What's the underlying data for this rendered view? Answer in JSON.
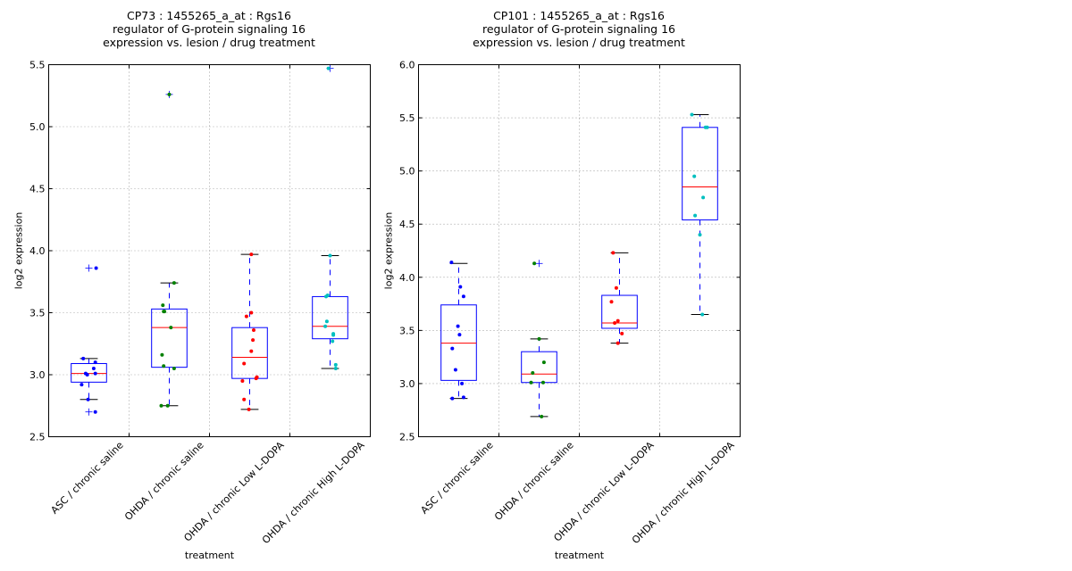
{
  "chart_data": [
    {
      "type": "boxplot",
      "title": [
        "CP73 : 1455265_a_at : Rgs16",
        "regulator of G-protein signaling 16",
        "expression vs. lesion / drug treatment"
      ],
      "xlabel": "treatment",
      "ylabel": "log2 expression",
      "ylim": [
        2.5,
        5.5
      ],
      "yticks": [
        "2.5",
        "3.0",
        "3.5",
        "4.0",
        "4.5",
        "5.0",
        "5.5"
      ],
      "grid": true,
      "categories": [
        "ASC / chronic saline",
        "OHDA / chronic saline",
        "OHDA / chronic Low L-DOPA",
        "OHDA / chronic High L-DOPA"
      ],
      "point_colors": [
        "#0000ff",
        "#008000",
        "#ff0000",
        "#00bfbf"
      ],
      "boxes": [
        {
          "whislo": 2.8,
          "q1": 2.94,
          "med": 3.01,
          "q3": 3.09,
          "whishi": 3.13,
          "fliers": [
            3.86,
            2.7
          ]
        },
        {
          "whislo": 2.75,
          "q1": 3.06,
          "med": 3.38,
          "q3": 3.53,
          "whishi": 3.74,
          "fliers": [
            5.26
          ]
        },
        {
          "whislo": 2.72,
          "q1": 2.97,
          "med": 3.14,
          "q3": 3.38,
          "whishi": 3.97,
          "fliers": []
        },
        {
          "whislo": 3.05,
          "q1": 3.29,
          "med": 3.39,
          "q3": 3.63,
          "whishi": 3.96,
          "fliers": [
            5.47
          ]
        }
      ],
      "points": [
        [
          [
            -0.07,
            3.13
          ],
          [
            0.08,
            3.1
          ],
          [
            0.06,
            3.05
          ],
          [
            -0.04,
            3.01
          ],
          [
            -0.02,
            3.0
          ],
          [
            0.08,
            3.01
          ],
          [
            -0.09,
            2.92
          ],
          [
            -0.01,
            2.8
          ],
          [
            0.08,
            2.7
          ],
          [
            0.09,
            3.86
          ]
        ],
        [
          [
            0.06,
            3.74
          ],
          [
            -0.08,
            3.56
          ],
          [
            -0.07,
            3.51
          ],
          [
            -0.06,
            3.51
          ],
          [
            0.02,
            3.38
          ],
          [
            -0.09,
            3.16
          ],
          [
            -0.07,
            3.07
          ],
          [
            0.06,
            3.05
          ],
          [
            -0.1,
            2.75
          ],
          [
            -0.02,
            2.75
          ],
          [
            0.0,
            5.26
          ]
        ],
        [
          [
            0.02,
            3.97
          ],
          [
            0.02,
            3.5
          ],
          [
            -0.04,
            3.47
          ],
          [
            0.05,
            3.36
          ],
          [
            0.04,
            3.28
          ],
          [
            0.02,
            3.19
          ],
          [
            -0.07,
            3.09
          ],
          [
            0.09,
            2.98
          ],
          [
            0.08,
            2.97
          ],
          [
            -0.09,
            2.95
          ],
          [
            -0.07,
            2.8
          ],
          [
            -0.01,
            2.72
          ]
        ],
        [
          [
            0.0,
            3.96
          ],
          [
            -0.03,
            3.64
          ],
          [
            -0.05,
            3.63
          ],
          [
            -0.04,
            3.43
          ],
          [
            -0.06,
            3.39
          ],
          [
            0.04,
            3.33
          ],
          [
            0.04,
            3.32
          ],
          [
            0.03,
            3.27
          ],
          [
            0.07,
            3.08
          ],
          [
            0.07,
            3.05
          ],
          [
            -0.02,
            5.47
          ]
        ]
      ]
    },
    {
      "type": "boxplot",
      "title": [
        "CP101 : 1455265_a_at : Rgs16",
        "regulator of G-protein signaling 16",
        "expression vs. lesion / drug treatment"
      ],
      "xlabel": "treatment",
      "ylabel": "log2 expression",
      "ylim": [
        2.5,
        6.0
      ],
      "yticks": [
        "2.5",
        "3.0",
        "3.5",
        "4.0",
        "4.5",
        "5.0",
        "5.5",
        "6.0"
      ],
      "grid": true,
      "categories": [
        "ASC / chronic saline",
        "OHDA / chronic saline",
        "OHDA / chronic Low L-DOPA",
        "OHDA / chronic High L-DOPA"
      ],
      "point_colors": [
        "#0000ff",
        "#008000",
        "#ff0000",
        "#00bfbf"
      ],
      "boxes": [
        {
          "whislo": 2.86,
          "q1": 3.03,
          "med": 3.38,
          "q3": 3.74,
          "whishi": 4.13,
          "fliers": []
        },
        {
          "whislo": 2.69,
          "q1": 3.01,
          "med": 3.09,
          "q3": 3.3,
          "whishi": 3.42,
          "fliers": [
            4.13
          ]
        },
        {
          "whislo": 3.38,
          "q1": 3.52,
          "med": 3.57,
          "q3": 3.83,
          "whishi": 4.23,
          "fliers": []
        },
        {
          "whislo": 3.65,
          "q1": 4.54,
          "med": 4.85,
          "q3": 5.41,
          "whishi": 5.53,
          "fliers": []
        }
      ],
      "points": [
        [
          [
            -0.09,
            4.14
          ],
          [
            0.02,
            3.91
          ],
          [
            0.06,
            3.82
          ],
          [
            -0.01,
            3.54
          ],
          [
            0.01,
            3.46
          ],
          [
            -0.08,
            3.33
          ],
          [
            -0.04,
            3.13
          ],
          [
            0.04,
            3.0
          ],
          [
            -0.08,
            2.86
          ],
          [
            0.06,
            2.87
          ]
        ],
        [
          [
            -0.06,
            4.13
          ],
          [
            0.0,
            3.42
          ],
          [
            0.06,
            3.2
          ],
          [
            -0.08,
            3.1
          ],
          [
            -0.1,
            3.01
          ],
          [
            0.05,
            3.01
          ],
          [
            0.03,
            2.69
          ]
        ],
        [
          [
            -0.08,
            4.23
          ],
          [
            -0.04,
            3.9
          ],
          [
            -0.1,
            3.77
          ],
          [
            -0.02,
            3.59
          ],
          [
            -0.06,
            3.57
          ],
          [
            0.03,
            3.47
          ],
          [
            -0.02,
            3.38
          ]
        ],
        [
          [
            -0.1,
            5.53
          ],
          [
            0.07,
            5.41
          ],
          [
            0.09,
            5.41
          ],
          [
            -0.07,
            4.95
          ],
          [
            0.04,
            4.75
          ],
          [
            -0.06,
            4.58
          ],
          [
            0.0,
            4.4
          ],
          [
            0.03,
            3.65
          ]
        ]
      ]
    }
  ]
}
